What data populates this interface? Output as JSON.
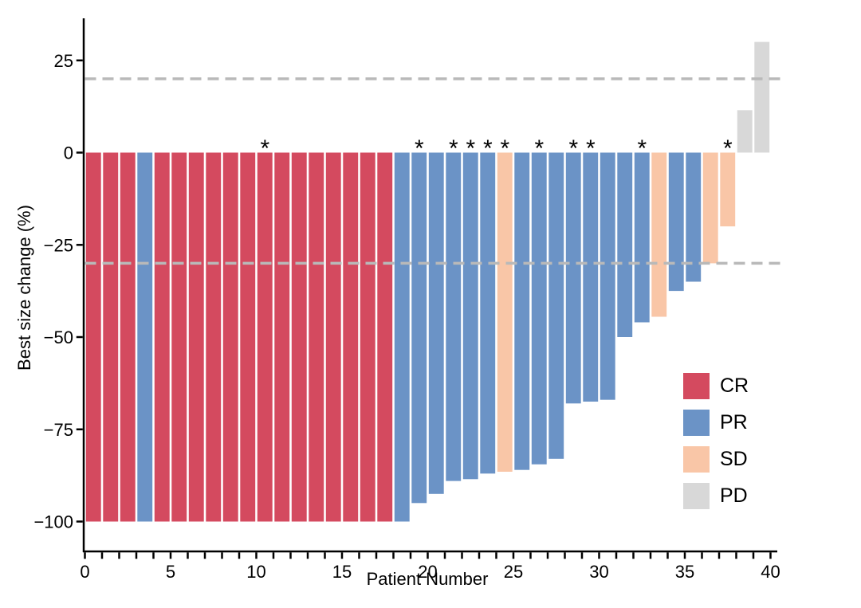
{
  "figure": {
    "background": "#ffffff"
  },
  "colors": {
    "CR": "#d44a5f",
    "PR": "#6b93c6",
    "SD": "#f9c6a7",
    "PD": "#d8d8d8",
    "threshold_line": "#b9b9b9",
    "axis": "#000000",
    "text": "#000000",
    "asterisk": "#000000"
  },
  "chart_data": {
    "type": "bar",
    "title": "",
    "xlabel": "Patient Number",
    "ylabel": "Best size change (%)",
    "xlim": [
      0,
      40
    ],
    "ylim": [
      -108,
      37
    ],
    "grid": false,
    "x_tick_step_minor": 1,
    "x_tick_labels": [
      "0",
      "5",
      "10",
      "15",
      "20",
      "25",
      "30",
      "35",
      "40"
    ],
    "x_tick_label_values": [
      0,
      5,
      10,
      15,
      20,
      25,
      30,
      35,
      40
    ],
    "y_tick_values": [
      25,
      0,
      -25,
      -50,
      -75,
      -100
    ],
    "y_tick_labels": [
      "25",
      "0",
      "−25",
      "−50",
      "−75",
      "−100"
    ],
    "thresholds": [
      {
        "value": 20,
        "style": "dashed"
      },
      {
        "value": -30,
        "style": "dashed"
      }
    ],
    "legend": {
      "position": "inside-right",
      "entries": [
        {
          "label": "CR",
          "code": "CR"
        },
        {
          "label": "PR",
          "code": "PR"
        },
        {
          "label": "SD",
          "code": "SD"
        },
        {
          "label": "PD",
          "code": "PD"
        }
      ]
    },
    "annotation_marker": "*",
    "patients": [
      {
        "patient": 1,
        "change": -100,
        "response": "CR",
        "asterisk": false
      },
      {
        "patient": 2,
        "change": -100,
        "response": "CR",
        "asterisk": false
      },
      {
        "patient": 3,
        "change": -100,
        "response": "CR",
        "asterisk": false
      },
      {
        "patient": 4,
        "change": -100,
        "response": "PR",
        "asterisk": false
      },
      {
        "patient": 5,
        "change": -100,
        "response": "CR",
        "asterisk": false
      },
      {
        "patient": 6,
        "change": -100,
        "response": "CR",
        "asterisk": false
      },
      {
        "patient": 7,
        "change": -100,
        "response": "CR",
        "asterisk": false
      },
      {
        "patient": 8,
        "change": -100,
        "response": "CR",
        "asterisk": false
      },
      {
        "patient": 9,
        "change": -100,
        "response": "CR",
        "asterisk": false
      },
      {
        "patient": 10,
        "change": -100,
        "response": "CR",
        "asterisk": false
      },
      {
        "patient": 11,
        "change": -100,
        "response": "CR",
        "asterisk": true
      },
      {
        "patient": 12,
        "change": -100,
        "response": "CR",
        "asterisk": false
      },
      {
        "patient": 13,
        "change": -100,
        "response": "CR",
        "asterisk": false
      },
      {
        "patient": 14,
        "change": -100,
        "response": "CR",
        "asterisk": false
      },
      {
        "patient": 15,
        "change": -100,
        "response": "CR",
        "asterisk": false
      },
      {
        "patient": 16,
        "change": -100,
        "response": "CR",
        "asterisk": false
      },
      {
        "patient": 17,
        "change": -100,
        "response": "CR",
        "asterisk": false
      },
      {
        "patient": 18,
        "change": -100,
        "response": "CR",
        "asterisk": false
      },
      {
        "patient": 19,
        "change": -100,
        "response": "PR",
        "asterisk": false
      },
      {
        "patient": 20,
        "change": -95,
        "response": "PR",
        "asterisk": true
      },
      {
        "patient": 21,
        "change": -92.5,
        "response": "PR",
        "asterisk": false
      },
      {
        "patient": 22,
        "change": -89,
        "response": "PR",
        "asterisk": true
      },
      {
        "patient": 23,
        "change": -88.5,
        "response": "PR",
        "asterisk": true
      },
      {
        "patient": 24,
        "change": -87,
        "response": "PR",
        "asterisk": true
      },
      {
        "patient": 25,
        "change": -86.5,
        "response": "SD",
        "asterisk": true
      },
      {
        "patient": 26,
        "change": -86,
        "response": "PR",
        "asterisk": false
      },
      {
        "patient": 27,
        "change": -84.5,
        "response": "PR",
        "asterisk": true
      },
      {
        "patient": 28,
        "change": -83,
        "response": "PR",
        "asterisk": false
      },
      {
        "patient": 29,
        "change": -68,
        "response": "PR",
        "asterisk": true
      },
      {
        "patient": 30,
        "change": -67.5,
        "response": "PR",
        "asterisk": true
      },
      {
        "patient": 31,
        "change": -67,
        "response": "PR",
        "asterisk": false
      },
      {
        "patient": 32,
        "change": -50,
        "response": "PR",
        "asterisk": false
      },
      {
        "patient": 33,
        "change": -46,
        "response": "PR",
        "asterisk": true
      },
      {
        "patient": 34,
        "change": -44.5,
        "response": "SD",
        "asterisk": false
      },
      {
        "patient": 35,
        "change": -37.5,
        "response": "PR",
        "asterisk": false
      },
      {
        "patient": 36,
        "change": -35,
        "response": "PR",
        "asterisk": false
      },
      {
        "patient": 37,
        "change": -30,
        "response": "SD",
        "asterisk": false
      },
      {
        "patient": 38,
        "change": -20,
        "response": "SD",
        "asterisk": true
      },
      {
        "patient": 39,
        "change": 11.5,
        "response": "PD",
        "asterisk": false
      },
      {
        "patient": 40,
        "change": 30,
        "response": "PD",
        "asterisk": false
      }
    ]
  }
}
